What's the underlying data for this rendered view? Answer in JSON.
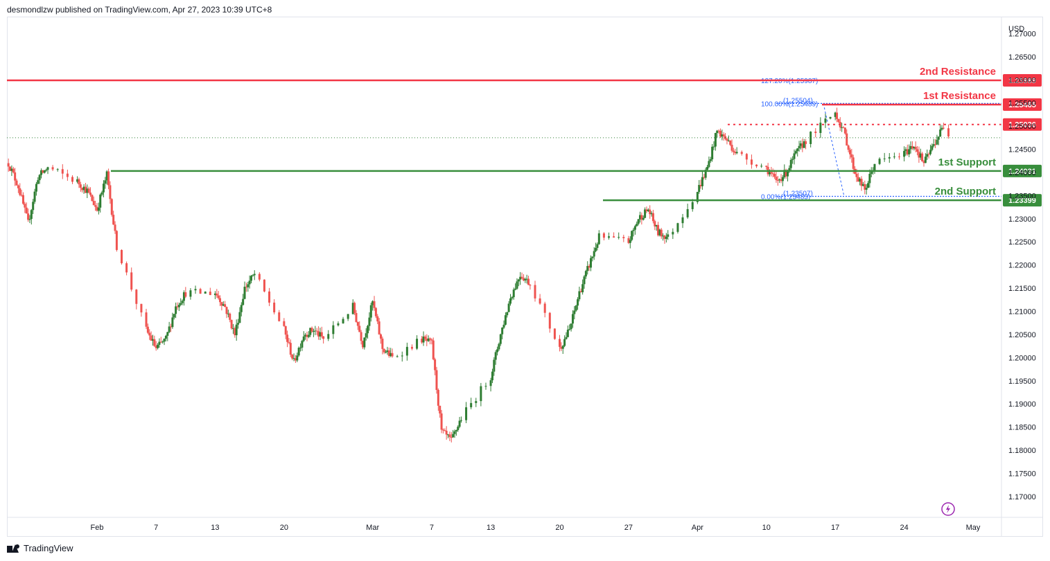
{
  "header": {
    "publish_text": "desmondlzw published on TradingView.com, Apr 27, 2023 10:39 UTC+8"
  },
  "footer": {
    "brand": "TradingView"
  },
  "colors": {
    "up": "#2e7d32",
    "down": "#ef5350",
    "resistance": "#f23645",
    "support": "#388e3c",
    "fib": "#2962ff"
  },
  "chart_data": {
    "type": "candlestick",
    "currency_label": "USD",
    "y_range": [
      1.1655,
      1.2735
    ],
    "y_ticks": [
      "1.27000",
      "1.26500",
      "1.26000",
      "1.25500",
      "1.25000",
      "1.24500",
      "1.24000",
      "1.23500",
      "1.23000",
      "1.22500",
      "1.22000",
      "1.21500",
      "1.21000",
      "1.20500",
      "1.20000",
      "1.19500",
      "1.19000",
      "1.18500",
      "1.18000",
      "1.17500",
      "1.17000"
    ],
    "x_ticks": [
      {
        "label": "Feb",
        "date": "2023-02-01"
      },
      {
        "label": "7",
        "date": "2023-02-07"
      },
      {
        "label": "13",
        "date": "2023-02-13"
      },
      {
        "label": "20",
        "date": "2023-02-20"
      },
      {
        "label": "Mar",
        "date": "2023-03-01"
      },
      {
        "label": "7",
        "date": "2023-03-07"
      },
      {
        "label": "13",
        "date": "2023-03-13"
      },
      {
        "label": "20",
        "date": "2023-03-20"
      },
      {
        "label": "27",
        "date": "2023-03-27"
      },
      {
        "label": "Apr",
        "date": "2023-04-03"
      },
      {
        "label": "10",
        "date": "2023-04-10"
      },
      {
        "label": "17",
        "date": "2023-04-17"
      },
      {
        "label": "24",
        "date": "2023-04-24"
      },
      {
        "label": "May",
        "date": "2023-05-01"
      }
    ],
    "price_path": [
      {
        "date": "2023-01-23",
        "price": 1.242
      },
      {
        "date": "2023-01-24",
        "price": 1.237
      },
      {
        "date": "2023-01-25",
        "price": 1.229
      },
      {
        "date": "2023-01-26",
        "price": 1.239
      },
      {
        "date": "2023-01-27",
        "price": 1.241
      },
      {
        "date": "2023-01-30",
        "price": 1.238
      },
      {
        "date": "2023-01-31",
        "price": 1.236
      },
      {
        "date": "2023-02-01",
        "price": 1.232
      },
      {
        "date": "2023-02-02",
        "price": 1.2395
      },
      {
        "date": "2023-02-03",
        "price": 1.224
      },
      {
        "date": "2023-02-06",
        "price": 1.206
      },
      {
        "date": "2023-02-07",
        "price": 1.202
      },
      {
        "date": "2023-02-08",
        "price": 1.204
      },
      {
        "date": "2023-02-09",
        "price": 1.211
      },
      {
        "date": "2023-02-10",
        "price": 1.214
      },
      {
        "date": "2023-02-13",
        "price": 1.214
      },
      {
        "date": "2023-02-14",
        "price": 1.211
      },
      {
        "date": "2023-02-15",
        "price": 1.205
      },
      {
        "date": "2023-02-16",
        "price": 1.215
      },
      {
        "date": "2023-02-17",
        "price": 1.218
      },
      {
        "date": "2023-02-20",
        "price": 1.206
      },
      {
        "date": "2023-02-21",
        "price": 1.199
      },
      {
        "date": "2023-02-22",
        "price": 1.205
      },
      {
        "date": "2023-02-23",
        "price": 1.206
      },
      {
        "date": "2023-02-24",
        "price": 1.204
      },
      {
        "date": "2023-02-27",
        "price": 1.211
      },
      {
        "date": "2023-02-28",
        "price": 1.203
      },
      {
        "date": "2023-03-01",
        "price": 1.212
      },
      {
        "date": "2023-03-02",
        "price": 1.202
      },
      {
        "date": "2023-03-03",
        "price": 1.2
      },
      {
        "date": "2023-03-06",
        "price": 1.204
      },
      {
        "date": "2023-03-07",
        "price": 1.203
      },
      {
        "date": "2023-03-08",
        "price": 1.184
      },
      {
        "date": "2023-03-09",
        "price": 1.182
      },
      {
        "date": "2023-03-10",
        "price": 1.187
      },
      {
        "date": "2023-03-13",
        "price": 1.196
      },
      {
        "date": "2023-03-14",
        "price": 1.205
      },
      {
        "date": "2023-03-15",
        "price": 1.213
      },
      {
        "date": "2023-03-16",
        "price": 1.218
      },
      {
        "date": "2023-03-17",
        "price": 1.216
      },
      {
        "date": "2023-03-20",
        "price": 1.202
      },
      {
        "date": "2023-03-21",
        "price": 1.206
      },
      {
        "date": "2023-03-22",
        "price": 1.214
      },
      {
        "date": "2023-03-23",
        "price": 1.22
      },
      {
        "date": "2023-03-24",
        "price": 1.226
      },
      {
        "date": "2023-03-27",
        "price": 1.225
      },
      {
        "date": "2023-03-28",
        "price": 1.23
      },
      {
        "date": "2023-03-29",
        "price": 1.232
      },
      {
        "date": "2023-03-30",
        "price": 1.227
      },
      {
        "date": "2023-03-31",
        "price": 1.226
      },
      {
        "date": "2023-04-03",
        "price": 1.236
      },
      {
        "date": "2023-04-04",
        "price": 1.241
      },
      {
        "date": "2023-04-05",
        "price": 1.249
      },
      {
        "date": "2023-04-06",
        "price": 1.247
      },
      {
        "date": "2023-04-07",
        "price": 1.244
      },
      {
        "date": "2023-04-10",
        "price": 1.241
      },
      {
        "date": "2023-04-11",
        "price": 1.238
      },
      {
        "date": "2023-04-12",
        "price": 1.24
      },
      {
        "date": "2023-04-13",
        "price": 1.244
      },
      {
        "date": "2023-04-14",
        "price": 1.247
      },
      {
        "date": "2023-04-17",
        "price": 1.253
      },
      {
        "date": "2023-04-18",
        "price": 1.248
      },
      {
        "date": "2023-04-19",
        "price": 1.24
      },
      {
        "date": "2023-04-20",
        "price": 1.236
      },
      {
        "date": "2023-04-21",
        "price": 1.242
      },
      {
        "date": "2023-04-24",
        "price": 1.244
      },
      {
        "date": "2023-04-25",
        "price": 1.246
      },
      {
        "date": "2023-04-26",
        "price": 1.242
      },
      {
        "date": "2023-04-27",
        "price": 1.246
      },
      {
        "date": "2023-04-28",
        "price": 1.25
      },
      {
        "date": "2023-05-01",
        "price": 1.241
      },
      {
        "date": "2023-05-02",
        "price": 1.247
      }
    ],
    "levels": [
      {
        "value": 1.25989,
        "label": "2nd Resistance",
        "price_label": "1.25989",
        "kind": "resistance",
        "style": "solid"
      },
      {
        "value": 1.25465,
        "label": "1st Resistance",
        "price_label": "1.25465",
        "kind": "resistance",
        "style": "solid"
      },
      {
        "value": 1.25036,
        "label": "",
        "price_label": "1.25036",
        "kind": "resistance",
        "style": "dotted"
      },
      {
        "value": 1.24031,
        "label": "1st Support",
        "price_label": "1.24031",
        "kind": "support",
        "style": "solid"
      },
      {
        "value": 1.23399,
        "label": "2nd Support",
        "price_label": "1.23399",
        "kind": "support",
        "style": "solid"
      }
    ],
    "fib": [
      {
        "value": 1.25987,
        "label": "127.20%(1.25987)"
      },
      {
        "value": 1.25489,
        "label": "100.00%(1.25489)",
        "overlap_label": "(1.25504)"
      },
      {
        "value": 1.23483,
        "label": "0.00%(1.23483)",
        "overlap_label": "(1.23507)"
      }
    ]
  }
}
